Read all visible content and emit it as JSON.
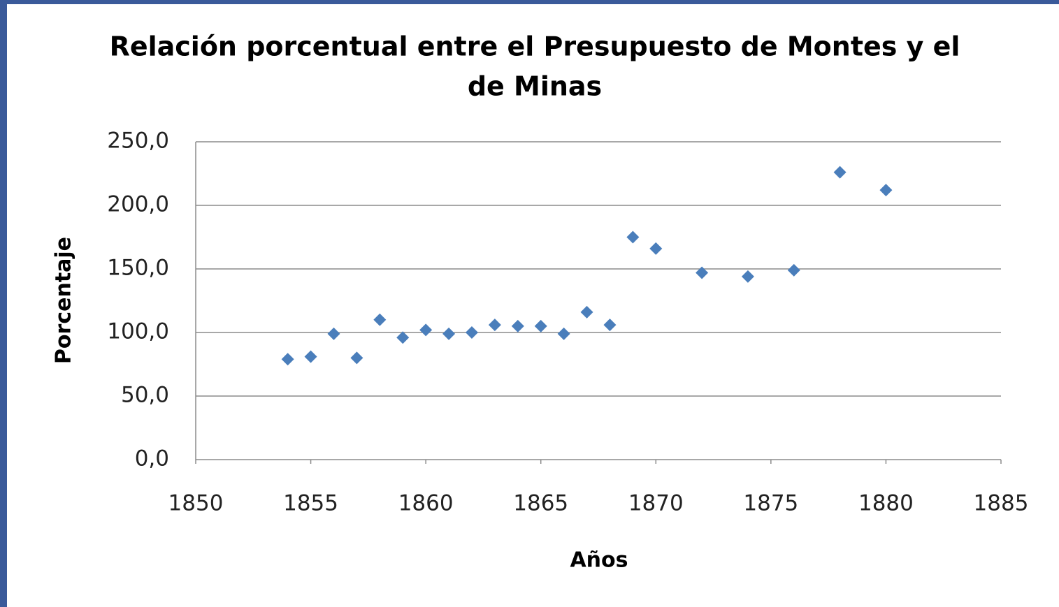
{
  "chart_data": {
    "type": "scatter",
    "title": [
      "Relación porcentual entre el Presupuesto de Montes y el",
      "de Minas"
    ],
    "x_label": "Años",
    "y_label": "Porcentaje",
    "series": [
      {
        "name": "Porcentaje",
        "color": "#4a7ebb",
        "x": [
          1854,
          1855,
          1856,
          1857,
          1858,
          1859,
          1860,
          1861,
          1862,
          1863,
          1864,
          1865,
          1866,
          1867,
          1868,
          1869,
          1870,
          1872,
          1874,
          1876,
          1878,
          1880
        ],
        "values": [
          79,
          81,
          99,
          80,
          110,
          96,
          102,
          99,
          100,
          106,
          105,
          105,
          99,
          116,
          106,
          175,
          166,
          147,
          144,
          149,
          226,
          212
        ]
      }
    ],
    "xlim": [
      1850,
      1885
    ],
    "xticks": [
      1850,
      1855,
      1860,
      1865,
      1870,
      1875,
      1880,
      1885
    ],
    "ylim": [
      0,
      250
    ],
    "yticks": [
      {
        "value": 0,
        "label": "0,0"
      },
      {
        "value": 50,
        "label": "50,0"
      },
      {
        "value": 100,
        "label": "100,0"
      },
      {
        "value": 150,
        "label": "150,0"
      },
      {
        "value": 200,
        "label": "200,0"
      },
      {
        "value": 250,
        "label": "250,0"
      }
    ],
    "grid": true
  }
}
